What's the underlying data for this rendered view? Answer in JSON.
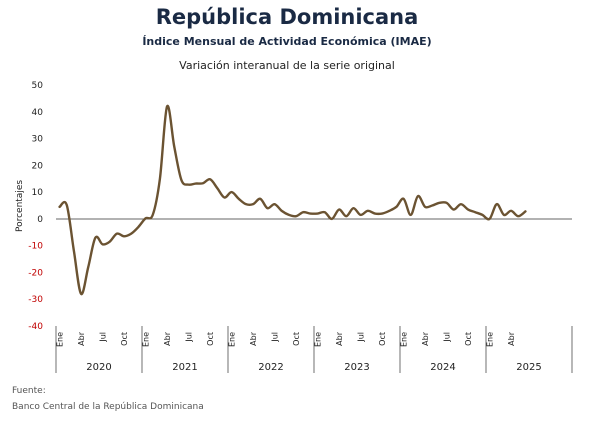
{
  "title": "República Dominicana",
  "subtitle": "Índice Mensual de Actividad Económica (IMAE)",
  "subtitle2": "Variación interanual de la serie original",
  "source_label": "Fuente:",
  "source_text": "Banco Central de la República Dominicana",
  "colors": {
    "line": "#6b5332",
    "negative_tick": "#c00000",
    "positive_tick": "#222222",
    "title": "#1a2a44"
  },
  "chart_data": {
    "type": "line",
    "ylabel": "Porcentajes",
    "ylim": [
      -40,
      50
    ],
    "yticks": [
      50,
      40,
      30,
      20,
      10,
      0,
      -10,
      -20,
      -30,
      -40
    ],
    "grid": false,
    "month_labels": [
      "Ene",
      "Abr",
      "Jul",
      "Oct"
    ],
    "years": [
      "2020",
      "2021",
      "2022",
      "2023",
      "2024",
      "2025"
    ],
    "series": [
      {
        "values": [
          4.5,
          5.2,
          -12.0,
          -28.0,
          -18.0,
          -7.0,
          -9.5,
          -8.5,
          -5.5,
          -6.5,
          -5.5,
          -3.0,
          0.2,
          1.5,
          15.0,
          42.0,
          27.0,
          14.5,
          12.8,
          13.2,
          13.3,
          14.8,
          11.5,
          8.0,
          10.0,
          7.5,
          5.5,
          5.5,
          7.5,
          4.0,
          5.5,
          3.0,
          1.5,
          1.0,
          2.5,
          2.0,
          2.0,
          2.5,
          0.0,
          3.5,
          1.0,
          4.0,
          1.5,
          3.0,
          2.0,
          2.0,
          3.0,
          4.5,
          7.5,
          1.5,
          8.5,
          4.5,
          5.0,
          6.0,
          6.0,
          3.5,
          5.5,
          3.5,
          2.5,
          1.5,
          0.0,
          5.5,
          1.5,
          3.0,
          1.0,
          2.8
        ]
      }
    ]
  }
}
